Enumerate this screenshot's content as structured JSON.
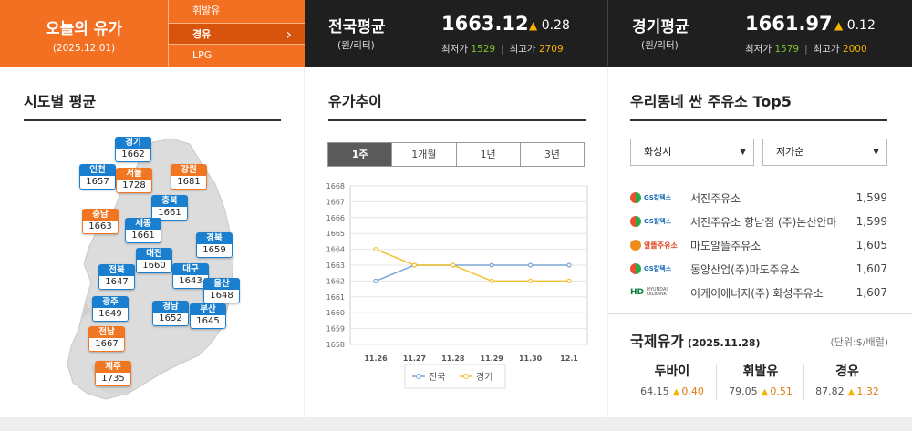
{
  "today": {
    "title": "오늘의 유가",
    "date": "(2025.12.01)"
  },
  "fuel_tabs": [
    {
      "label": "휘발유",
      "active": false
    },
    {
      "label": "경유",
      "active": true
    },
    {
      "label": "LPG",
      "active": false
    }
  ],
  "national": {
    "name": "전국평균",
    "unit": "(원/리터)",
    "price": "1663.12",
    "change": "0.28",
    "min_label": "최저가",
    "min": "1529",
    "max_label": "최고가",
    "max": "2709"
  },
  "gyeonggi": {
    "name": "경기평균",
    "unit": "(원/리터)",
    "price": "1661.97",
    "change": "0.12",
    "min_label": "최저가",
    "min": "1579",
    "max_label": "최고가",
    "max": "2000"
  },
  "region_panel": {
    "title": "시도별 평균",
    "regions": [
      {
        "name": "경기",
        "value": "1662",
        "color": "blue"
      },
      {
        "name": "인천",
        "value": "1657",
        "color": "blue"
      },
      {
        "name": "서울",
        "value": "1728",
        "color": "orange"
      },
      {
        "name": "강원",
        "value": "1681",
        "color": "orange"
      },
      {
        "name": "충북",
        "value": "1661",
        "color": "blue"
      },
      {
        "name": "충남",
        "value": "1663",
        "color": "orange"
      },
      {
        "name": "세종",
        "value": "1661",
        "color": "blue"
      },
      {
        "name": "경북",
        "value": "1659",
        "color": "blue"
      },
      {
        "name": "대전",
        "value": "1660",
        "color": "blue"
      },
      {
        "name": "전북",
        "value": "1647",
        "color": "blue"
      },
      {
        "name": "대구",
        "value": "1643",
        "color": "blue"
      },
      {
        "name": "울산",
        "value": "1648",
        "color": "blue"
      },
      {
        "name": "광주",
        "value": "1649",
        "color": "blue"
      },
      {
        "name": "경남",
        "value": "1652",
        "color": "blue"
      },
      {
        "name": "부산",
        "value": "1645",
        "color": "blue"
      },
      {
        "name": "전남",
        "value": "1667",
        "color": "orange"
      },
      {
        "name": "제주",
        "value": "1735",
        "color": "orange"
      }
    ]
  },
  "trend_panel": {
    "title": "유가추이",
    "tabs": [
      {
        "label": "1주",
        "active": true
      },
      {
        "label": "1개월",
        "active": false
      },
      {
        "label": "1년",
        "active": false
      },
      {
        "label": "3년",
        "active": false
      }
    ]
  },
  "chart_data": {
    "type": "line",
    "x": [
      "11.26",
      "11.27",
      "11.28",
      "11.29",
      "11.30",
      "12.1"
    ],
    "series": [
      {
        "name": "전국",
        "color": "#7fa6d6",
        "values": [
          1662,
          1663,
          1663,
          1663,
          1663,
          1663
        ]
      },
      {
        "name": "경기",
        "color": "#f2c330",
        "values": [
          1664,
          1663,
          1663,
          1662,
          1662,
          1662
        ]
      }
    ],
    "y_ticks": [
      1658,
      1659,
      1660,
      1661,
      1662,
      1663,
      1664,
      1665,
      1666,
      1667,
      1668
    ],
    "ylim": [
      1658,
      1668
    ],
    "grid": "horizontal",
    "legend": "bottom-center"
  },
  "cheap_panel": {
    "title": "우리동네 싼 주유소 Top5",
    "city_select": "화성시",
    "order_select": "저가순",
    "stations": [
      {
        "brand": "GS칼텍스",
        "logo": "gs",
        "name": "서진주유소",
        "price": "1,599"
      },
      {
        "brand": "GS칼텍스",
        "logo": "gs",
        "name": "서진주유소 향남점 (주)논산안마",
        "price": "1,599"
      },
      {
        "brand": "알뜰주유소",
        "logo": "alddeul",
        "name": "마도알뜰주유소",
        "price": "1,605"
      },
      {
        "brand": "GS칼텍스",
        "logo": "gs",
        "name": "동양산업(주)마도주유소",
        "price": "1,607"
      },
      {
        "brand": "HD",
        "brand_sub": "HYUNDAI OILBANK",
        "logo": "hd",
        "name": "이케이에너지(주) 화성주유소",
        "price": "1,607"
      }
    ]
  },
  "intl_panel": {
    "title": "국제유가",
    "date": "(2025.11.28)",
    "unit": "(단위:$/배럴)",
    "items": [
      {
        "name": "두바이",
        "value": "64.15",
        "change": "0.40"
      },
      {
        "name": "휘발유",
        "value": "79.05",
        "change": "0.51"
      },
      {
        "name": "경유",
        "value": "87.82",
        "change": "1.32"
      }
    ]
  }
}
